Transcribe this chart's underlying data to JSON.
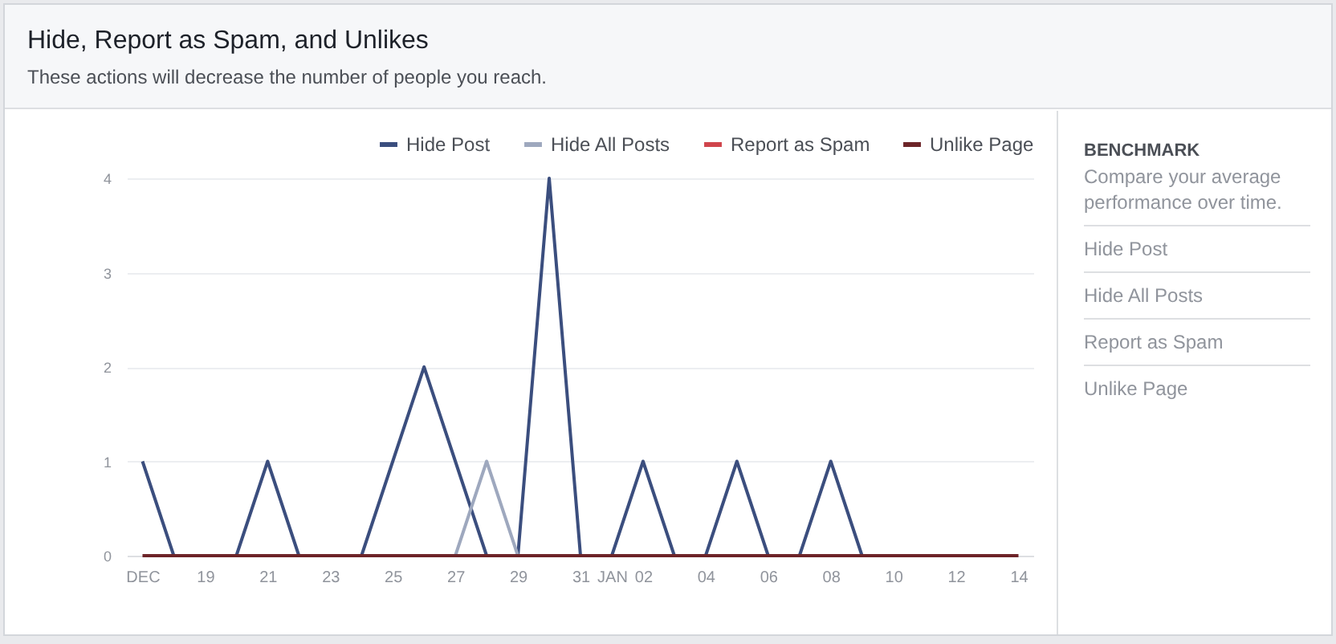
{
  "chart_data": [
    {
      "type": "line",
      "title": "Hide, Report as Spam, and Unlikes",
      "subtitle": "These actions will decrease the number of people you reach.",
      "categories": [
        "DEC",
        null,
        "19",
        null,
        "21",
        null,
        "23",
        null,
        "25",
        null,
        "27",
        null,
        "29",
        null,
        "31",
        "JAN",
        "02",
        null,
        "04",
        null,
        "06",
        null,
        "08",
        null,
        "10",
        null,
        "12",
        null,
        "14"
      ],
      "series": [
        {
          "name": "Hide Post",
          "color": "#3b4e7e",
          "values": [
            1,
            0,
            0,
            0,
            1,
            0,
            0,
            0,
            1,
            2,
            1,
            0,
            0,
            4,
            0,
            0,
            1,
            0,
            0,
            1,
            0,
            0,
            1,
            0,
            0,
            null,
            null,
            null,
            null
          ]
        },
        {
          "name": "Hide All Posts",
          "color": "#9ea8be",
          "values": [
            null,
            null,
            null,
            null,
            null,
            null,
            null,
            null,
            null,
            null,
            0,
            1,
            0,
            null,
            null,
            null,
            null,
            null,
            null,
            null,
            null,
            null,
            null,
            null,
            null,
            null,
            null,
            null,
            null
          ]
        },
        {
          "name": "Report as Spam",
          "color": "#d0454c",
          "values": [
            null,
            null,
            null,
            null,
            null,
            null,
            null,
            null,
            null,
            null,
            null,
            null,
            null,
            null,
            null,
            null,
            null,
            null,
            null,
            null,
            null,
            null,
            null,
            null,
            null,
            null,
            null,
            null,
            null
          ]
        },
        {
          "name": "Unlike Page",
          "color": "#6d2428",
          "values": [
            0,
            0,
            0,
            0,
            0,
            0,
            0,
            0,
            0,
            0,
            0,
            0,
            0,
            0,
            0,
            0,
            0,
            0,
            0,
            0,
            0,
            0,
            0,
            0,
            0,
            0,
            0,
            0,
            0
          ]
        }
      ],
      "ylim": [
        0,
        4
      ],
      "yticks": [
        0,
        1,
        2,
        3,
        4
      ],
      "grid": "y",
      "legend": "top right",
      "marker": "none",
      "line_style": "solid"
    },
    {
      "type": "other",
      "title": "BENCHMARK",
      "subtitle": "Compare your average performance over time.",
      "annotations": [
        "Hide Post",
        "Hide All Posts",
        "Report as Spam",
        "Unlike Page"
      ]
    }
  ]
}
